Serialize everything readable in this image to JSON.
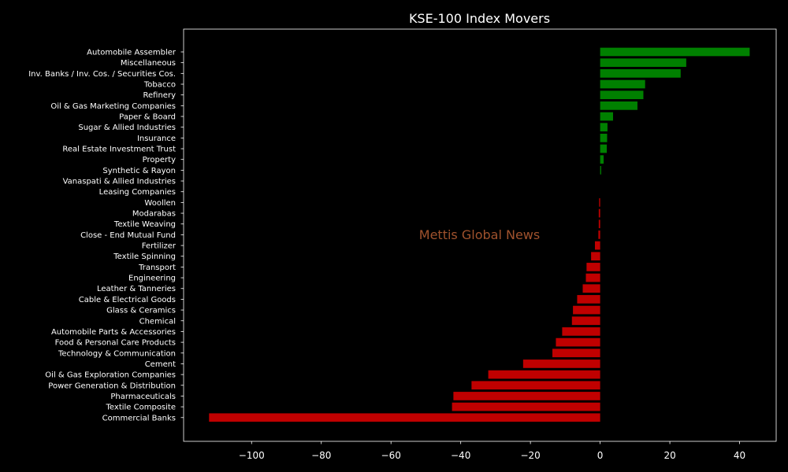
{
  "chart_data": {
    "type": "bar",
    "orientation": "horizontal",
    "title": "KSE-100 Index Movers",
    "xlabel": "",
    "ylabel": "",
    "xlim": [
      -119.5,
      50.5
    ],
    "xticks": [
      -100,
      -80,
      -60,
      -40,
      -20,
      0,
      20,
      40
    ],
    "grid": false,
    "positive_color": "#008000",
    "negative_color": "#c00000",
    "background": "#000000",
    "watermark": "Mettis Global News",
    "watermark_color": "#a0522d",
    "categories": [
      "Automobile Assembler",
      "Miscellaneous",
      "Inv. Banks / Inv. Cos. / Securities Cos.",
      "Tobacco",
      "Refinery",
      "Oil & Gas Marketing Companies",
      "Paper & Board",
      "Sugar & Allied Industries",
      "Insurance",
      "Real Estate Investment Trust",
      "Property",
      "Synthetic & Rayon",
      "Vanaspati & Allied Industries",
      "Leasing Companies",
      "Woollen",
      "Modarabas",
      "Textile Weaving",
      "Close - End Mutual Fund",
      "Fertilizer",
      "Textile Spinning",
      "Transport",
      "Engineering",
      "Leather & Tanneries",
      "Cable & Electrical Goods",
      "Glass & Ceramics",
      "Chemical",
      "Automobile Parts & Accessories",
      "Food & Personal Care Products",
      "Technology & Communication",
      "Cement",
      "Oil & Gas Exploration Companies",
      "Power Generation & Distribution",
      "Pharmaceuticals",
      "Textile Composite",
      "Commercial Banks"
    ],
    "values": [
      42.9,
      24.7,
      23.1,
      12.9,
      12.4,
      10.7,
      3.7,
      2.1,
      2.0,
      1.9,
      1.0,
      0.3,
      0.0,
      0.0,
      -0.3,
      -0.4,
      -0.4,
      -0.5,
      -1.5,
      -2.6,
      -3.9,
      -4.1,
      -5.0,
      -6.6,
      -7.8,
      -8.1,
      -10.9,
      -12.7,
      -13.7,
      -22.1,
      -32.1,
      -36.9,
      -42.1,
      -42.5,
      -112.2
    ]
  }
}
